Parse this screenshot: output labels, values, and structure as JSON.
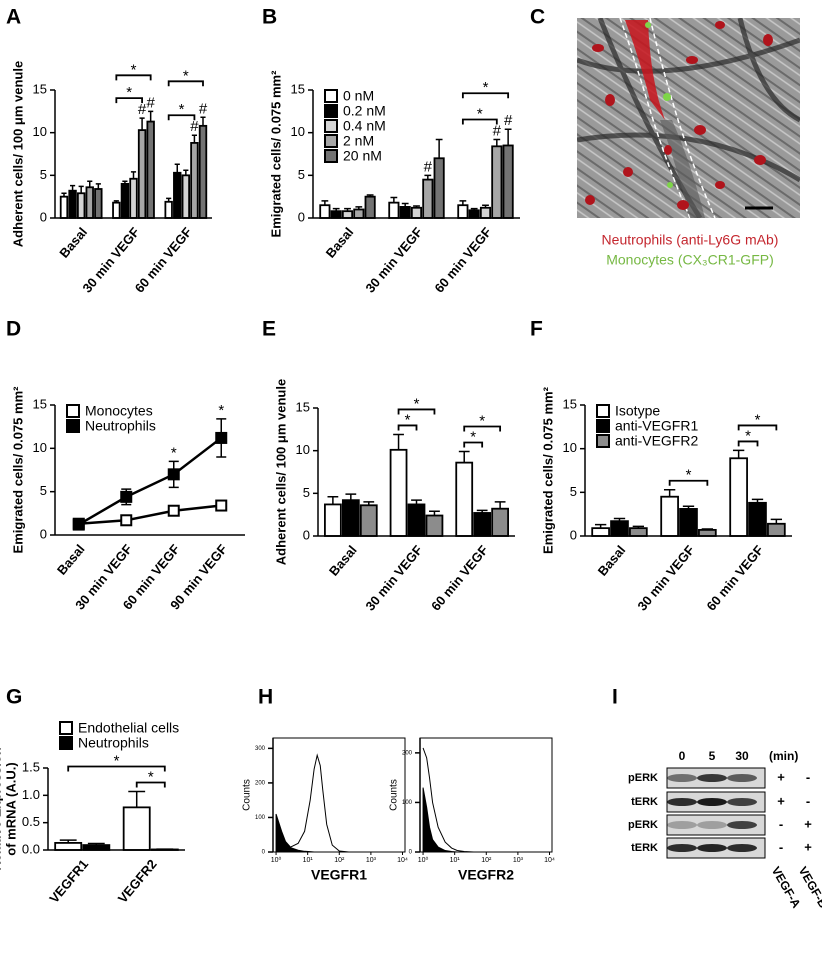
{
  "chart_data": [
    {
      "type": "bar",
      "panel": "A",
      "y_label": "Adherent cells/ 100 μm venule",
      "categories": [
        "Basal",
        "30 min VEGF",
        "60 min VEGF"
      ],
      "series": [
        {
          "color": "#ffffff",
          "values": [
            2.5,
            1.8,
            1.9
          ],
          "errors": [
            0.4,
            0.2,
            0.4
          ]
        },
        {
          "color": "#000000",
          "values": [
            3.2,
            4.0,
            5.3
          ],
          "errors": [
            0.6,
            0.3,
            1.0
          ]
        },
        {
          "color": "#d4d4d4",
          "values": [
            2.9,
            4.6,
            5.0
          ],
          "errors": [
            0.8,
            0.8,
            0.6
          ]
        },
        {
          "color": "#a6a6a6",
          "values": [
            3.6,
            10.3,
            8.8
          ],
          "errors": [
            0.7,
            1.4,
            0.9
          ]
        },
        {
          "color": "#737373",
          "values": [
            3.4,
            11.3,
            10.8
          ],
          "errors": [
            0.6,
            1.2,
            1.0
          ]
        }
      ],
      "ylim": [
        0,
        15
      ],
      "yticks": [
        0,
        5,
        10,
        15
      ],
      "markers": {
        "star": "*",
        "hash": "#"
      }
    },
    {
      "type": "bar",
      "panel": "B",
      "y_label": "Emigrated cells/ 0.075 mm²",
      "categories": [
        "Basal",
        "30 min VEGF",
        "60 min VEGF"
      ],
      "series": [
        {
          "name": "0 nM",
          "color": "#ffffff",
          "values": [
            1.5,
            1.8,
            1.5
          ],
          "errors": [
            0.5,
            0.6,
            0.5
          ]
        },
        {
          "name": "0.2 nM",
          "color": "#000000",
          "values": [
            0.8,
            1.3,
            0.9
          ],
          "errors": [
            0.3,
            0.4,
            0.2
          ]
        },
        {
          "name": "0.4 nM",
          "color": "#d4d4d4",
          "values": [
            0.8,
            1.2,
            1.2
          ],
          "errors": [
            0.3,
            0.2,
            0.3
          ]
        },
        {
          "name": "2 nM",
          "color": "#a6a6a6",
          "values": [
            1.0,
            4.5,
            8.4
          ],
          "errors": [
            0.3,
            0.5,
            0.8
          ]
        },
        {
          "name": "20 nM",
          "color": "#737373",
          "values": [
            2.5,
            7.0,
            8.5
          ],
          "errors": [
            0.2,
            2.2,
            1.9
          ]
        }
      ],
      "ylim": [
        0,
        15
      ],
      "yticks": [
        0,
        5,
        10,
        15
      ],
      "legend": "upper left",
      "markers": {
        "star": "*",
        "hash": "#"
      }
    },
    {
      "type": "image",
      "panel": "C",
      "captions": [
        "Neutrophils (anti-Ly6G mAb)",
        "Monocytes (CX₃CR1-GFP)"
      ],
      "caption_colors": [
        "#c4262e",
        "#76b843"
      ]
    },
    {
      "type": "line",
      "panel": "D",
      "y_label": "Emigrated cells/ 0.075 mm²",
      "categories": [
        "Basal",
        "30 min VEGF",
        "60 min VEGF",
        "90 min VEGF"
      ],
      "series": [
        {
          "name": "Monocytes",
          "color": "#ffffff",
          "values": [
            1.3,
            1.7,
            2.8,
            3.4
          ],
          "errors": [
            0.2,
            0.3,
            0.4,
            0.5
          ]
        },
        {
          "name": "Neutrophils",
          "color": "#000000",
          "values": [
            1.2,
            4.4,
            7.0,
            11.2
          ],
          "errors": [
            0.4,
            0.9,
            1.5,
            2.2
          ]
        }
      ],
      "ylim": [
        0,
        15
      ],
      "yticks": [
        0,
        5,
        10,
        15
      ],
      "legend": "upper left",
      "markers": {
        "star": "*"
      }
    },
    {
      "type": "bar",
      "panel": "E",
      "y_label": "Adherent cells/ 100 μm venule",
      "categories": [
        "Basal",
        "30 min VEGF",
        "60 min VEGF"
      ],
      "series": [
        {
          "color": "#ffffff",
          "values": [
            3.7,
            10.1,
            8.6
          ],
          "errors": [
            0.9,
            1.8,
            1.3
          ]
        },
        {
          "color": "#000000",
          "values": [
            4.2,
            3.7,
            2.7
          ],
          "errors": [
            0.7,
            0.5,
            0.3
          ]
        },
        {
          "color": "#8c8c8c",
          "values": [
            3.6,
            2.4,
            3.2
          ],
          "errors": [
            0.4,
            0.5,
            0.8
          ]
        }
      ],
      "ylim": [
        0,
        15
      ],
      "yticks": [
        0,
        5,
        10,
        15
      ],
      "markers": {
        "star": "*"
      }
    },
    {
      "type": "bar",
      "panel": "F",
      "y_label": "Emigrated cells/ 0.075 mm²",
      "categories": [
        "Basal",
        "30 min VEGF",
        "60 min VEGF"
      ],
      "series": [
        {
          "name": "Isotype",
          "color": "#ffffff",
          "values": [
            0.9,
            4.5,
            8.9
          ],
          "errors": [
            0.4,
            0.8,
            0.9
          ]
        },
        {
          "name": "anti-VEGFR1",
          "color": "#000000",
          "values": [
            1.7,
            3.1,
            3.8
          ],
          "errors": [
            0.3,
            0.3,
            0.4
          ]
        },
        {
          "name": "anti-VEGFR2",
          "color": "#8c8c8c",
          "values": [
            0.9,
            0.7,
            1.4
          ],
          "errors": [
            0.2,
            0.1,
            0.5
          ]
        }
      ],
      "ylim": [
        0,
        15
      ],
      "yticks": [
        0,
        5,
        10,
        15
      ],
      "legend": "upper left",
      "markers": {
        "star": "*"
      }
    },
    {
      "type": "bar",
      "panel": "G",
      "y_label": [
        "Relative Expression",
        "of mRNA (A.U.)"
      ],
      "categories": [
        "VEGFR1",
        "VEGFR2"
      ],
      "series": [
        {
          "name": "Endothelial cells",
          "color": "#ffffff",
          "values": [
            0.13,
            0.78
          ],
          "errors": [
            0.05,
            0.29
          ]
        },
        {
          "name": "Neutrophils",
          "color": "#000000",
          "values": [
            0.09,
            0.01
          ],
          "errors": [
            0.03,
            0.005
          ]
        }
      ],
      "ylim": [
        0,
        1.5
      ],
      "yticks": [
        {
          "value": 0,
          "label": "0.0"
        },
        {
          "value": 0.5,
          "label": "0.5"
        },
        {
          "value": 1,
          "label": "1.0"
        },
        {
          "value": 1.5,
          "label": "1.5"
        }
      ],
      "legend": "above",
      "markers": {
        "star": "*"
      }
    },
    {
      "type": "flow",
      "panel": "H",
      "y_label": "Counts",
      "x_label": "VEGFR1",
      "log_x": true,
      "x": [
        1,
        1.5,
        2,
        3,
        5,
        8,
        12,
        16,
        20,
        25,
        30,
        40,
        60,
        100,
        200
      ],
      "series": [
        {
          "color": "#000000",
          "filled": false,
          "values": [
            5,
            8,
            10,
            15,
            25,
            60,
            150,
            240,
            280,
            250,
            180,
            80,
            20,
            3,
            0
          ]
        },
        {
          "color": "#000000",
          "filled": true,
          "values": [
            110,
            60,
            30,
            12,
            5,
            2,
            1,
            0,
            0,
            0,
            0,
            0,
            0,
            0,
            0
          ]
        }
      ],
      "xlim": [
        0.8,
        12000
      ],
      "xticks": [
        {
          "value": 1,
          "label": "10⁰"
        },
        {
          "value": 10,
          "label": "10¹"
        },
        {
          "value": 100,
          "label": "10²"
        },
        {
          "value": 1000,
          "label": "10³"
        },
        {
          "value": 10000,
          "label": "10⁴"
        }
      ],
      "ylim": [
        0,
        330
      ],
      "yticks": [
        0,
        100,
        200,
        300
      ]
    },
    {
      "type": "flow",
      "y_label": "Counts",
      "x_label": "VEGFR2",
      "log_x": true,
      "x": [
        1,
        1.3,
        1.6,
        2,
        3,
        5,
        8,
        12,
        20,
        40
      ],
      "series": [
        {
          "color": "#000000",
          "filled": false,
          "values": [
            210,
            190,
            150,
            100,
            50,
            20,
            8,
            3,
            1,
            0
          ]
        },
        {
          "color": "#000000",
          "filled": true,
          "values": [
            130,
            90,
            50,
            25,
            10,
            3,
            1,
            0,
            0,
            0
          ]
        }
      ],
      "xlim": [
        0.8,
        12000
      ],
      "xticks": [
        {
          "value": 1,
          "label": "10⁰"
        },
        {
          "value": 10,
          "label": "10¹"
        },
        {
          "value": 100,
          "label": "10²"
        },
        {
          "value": 1000,
          "label": "10³"
        },
        {
          "value": 10000,
          "label": "10⁴"
        }
      ],
      "ylim": [
        0,
        230
      ],
      "yticks": [
        0,
        100,
        200
      ]
    },
    {
      "type": "blot",
      "panel": "I",
      "time_points": [
        "0",
        "5",
        "30"
      ],
      "time_unit": "(min)",
      "rows": [
        {
          "label": "pERK",
          "signs": [
            "+",
            "-"
          ]
        },
        {
          "label": "tERK",
          "signs": [
            "+",
            "-"
          ]
        },
        {
          "label": "pERK",
          "signs": [
            "-",
            "+"
          ]
        },
        {
          "label": "tERK",
          "signs": [
            "-",
            "+"
          ]
        }
      ],
      "treatments": [
        "VEGF-A",
        "VEGF-B"
      ]
    }
  ]
}
